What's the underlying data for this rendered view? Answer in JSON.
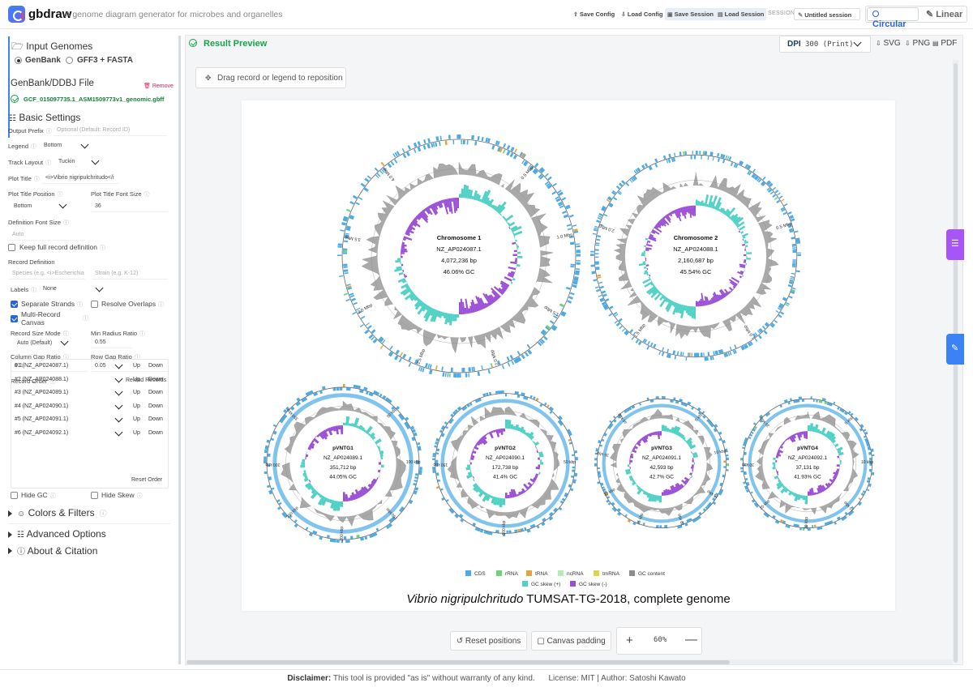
{
  "header": {
    "brand": "gbdraw",
    "tagline": "A genome diagram generator for microbes and organelles",
    "buttons": [
      "Save Config",
      "Load Config",
      "Save Session",
      "Load Session"
    ],
    "session_label": "SESSION",
    "session_name": "Untitled session",
    "mode_circular": "Circular",
    "mode_linear": "Linear"
  },
  "sidebar": {
    "input_title": "Input Genomes",
    "radio_genbank": "GenBank",
    "radio_gff": "GFF3 + FASTA",
    "file_title": "GenBank/DDBJ File",
    "remove": "Remove",
    "file_name": "GCF_015097735.1_ASM1509773v1_genomic.gbff",
    "basic_title": "Basic Settings",
    "output_prefix_label": "Output Prefix",
    "output_prefix_placeholder": "Optional (Default: Record ID)",
    "legend_label": "Legend",
    "legend_value": "Bottom",
    "track_layout_label": "Track Layout",
    "track_layout_value": "Tuckin",
    "plot_title_label": "Plot Title",
    "plot_title_value": "<i>Vibrio nigripulchritudo</i",
    "plot_title_pos_label": "Plot Title Position",
    "plot_title_pos_value": "Bottom",
    "plot_title_font_label": "Plot Title Font Size",
    "plot_title_font_value": "36",
    "def_font_label": "Definition Font Size",
    "def_font_placeholder": "Auto",
    "keep_full_label": "Keep full record definition",
    "record_def_label": "Record Definition",
    "species_placeholder": "Species (e.g. <i>Escherichia",
    "strain_placeholder": "Strain (e.g. K-12)",
    "labels_label": "Labels",
    "labels_value": "None",
    "separate_strands": "Separate Strands",
    "resolve_overlaps": "Resolve Overlaps",
    "multi_record_1": "Multi-Record",
    "multi_record_2": "Canvas",
    "record_size_mode_label": "Record Size Mode",
    "record_size_mode_value": "Auto (Default)",
    "min_radius_label": "Min Radius Ratio",
    "min_radius_value": "0.55",
    "col_gap_label": "Column Gap Ratio",
    "col_gap_value": "0.1",
    "row_gap_label": "Row Gap Ratio",
    "row_gap_value": "0.05",
    "record_order_label": "Record Order",
    "reload_records": "Reload Records",
    "records": [
      "#1 (NZ_AP024087.1)",
      "#2 (NZ_AP024088.1)",
      "#3 (NZ_AP024089.1)",
      "#4 (NZ_AP024090.1)",
      "#5 (NZ_AP024091.1)",
      "#6 (NZ_AP024092.1)"
    ],
    "up": "Up",
    "down": "Down",
    "reset_order": "Reset Order",
    "hide_gc": "Hide GC",
    "hide_skew": "Hide Skew",
    "colors_filters": "Colors & Filters",
    "advanced_options": "Advanced Options",
    "about": "About & Citation"
  },
  "main": {
    "result_title": "Result Preview",
    "dpi_label": "DPI",
    "dpi_value": "300 (Print)",
    "export": [
      "SVG",
      "PNG",
      "PDF"
    ],
    "drag_hint": "Drag record or legend to reposition",
    "reset_positions": "Reset positions",
    "canvas_padding": "Canvas padding",
    "zoom": "60%"
  },
  "diagram": {
    "title_italic": "Vibrio nigripulchritudo",
    "title_rest": " TUMSAT-TG-2018, complete genome",
    "records": [
      {
        "name": "Chromosome 1",
        "acc": "NZ_AP024087.1",
        "bp": "4,072,236 bp",
        "gc": "46.06% GC",
        "ticks": [
          "0.5 Mbp",
          "1.0 Mbp",
          "1.5 Mbp",
          "2.0 Mbp",
          "2.5 Mbp",
          "3.0 Mbp",
          "3.5 Mbp",
          "4.0 Mbp"
        ]
      },
      {
        "name": "Chromosome 2",
        "acc": "NZ_AP024088.1",
        "bp": "2,160,687 bp",
        "gc": "45.54% GC",
        "ticks": [
          "0.5 Mbp",
          "1.0 Mbp",
          "1.5 Mbp",
          "2.0 Mbp"
        ]
      },
      {
        "name": "pVNTG1",
        "acc": "NZ_AP024089.1",
        "bp": "351,712 bp",
        "gc": "44.05% GC",
        "ticks": [
          "50 kbp",
          "100 kbp",
          "150 kbp",
          "200 kbp",
          "250 kbp",
          "300 kbp",
          "350 kbp"
        ]
      },
      {
        "name": "pVNTG2",
        "acc": "NZ_AP024090.1",
        "bp": "172,738 bp",
        "gc": "41.4% GC",
        "ticks": [
          "50 kbp",
          "100 kbp",
          "150 kbp"
        ]
      },
      {
        "name": "pVNTG3",
        "acc": "NZ_AP024091.1",
        "bp": "42,593 bp",
        "gc": "42.7% GC",
        "ticks": [
          "5 kbp",
          "10 kbp",
          "15 kbp",
          "20 kbp",
          "25 kbp",
          "30 kbp",
          "35 kbp",
          "40 kbp"
        ]
      },
      {
        "name": "pVNTG4",
        "acc": "NZ_AP024092.1",
        "bp": "37,131 bp",
        "gc": "41.93% GC",
        "ticks": [
          "5 kbp",
          "10 kbp",
          "15 kbp",
          "20 kbp",
          "25 kbp",
          "30 kbp",
          "35 kbp"
        ]
      }
    ],
    "legend": [
      {
        "label": "CDS",
        "color": "#4aabe6"
      },
      {
        "label": "rRNA",
        "color": "#6fd37c"
      },
      {
        "label": "tRNA",
        "color": "#e6a23c"
      },
      {
        "label": "ncRNA",
        "color": "#b4eab8"
      },
      {
        "label": "tmRNA",
        "color": "#e0d24a"
      },
      {
        "label": "GC content",
        "color": "#8c8c8c"
      },
      {
        "label": "GC skew (+)",
        "color": "#4fd1c5"
      },
      {
        "label": "GC skew (-)",
        "color": "#9b4fd6"
      }
    ]
  },
  "footer": {
    "disclaimer_label": "Disclaimer:",
    "disclaimer_text": " This tool is provided \"as is\" without warranty of any kind.",
    "license": "License: MIT | Author: Satoshi Kawato"
  }
}
